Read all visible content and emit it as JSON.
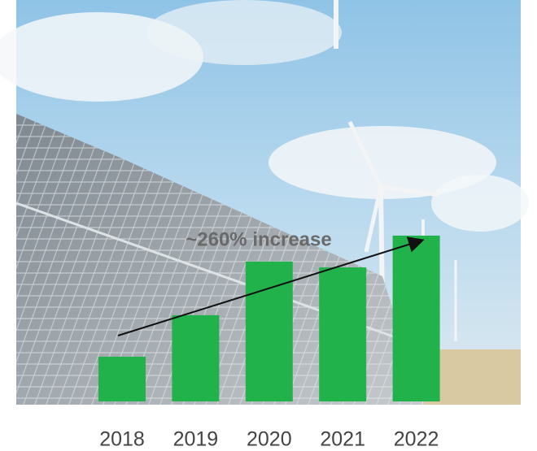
{
  "chart_data": {
    "type": "bar",
    "categories": [
      "2018",
      "2019",
      "2020",
      "2021",
      "2022"
    ],
    "values": [
      100,
      193,
      313,
      300,
      371
    ],
    "color": "#22b24c",
    "ylim": [
      0,
      400
    ],
    "annotation": "~260% increase"
  }
}
